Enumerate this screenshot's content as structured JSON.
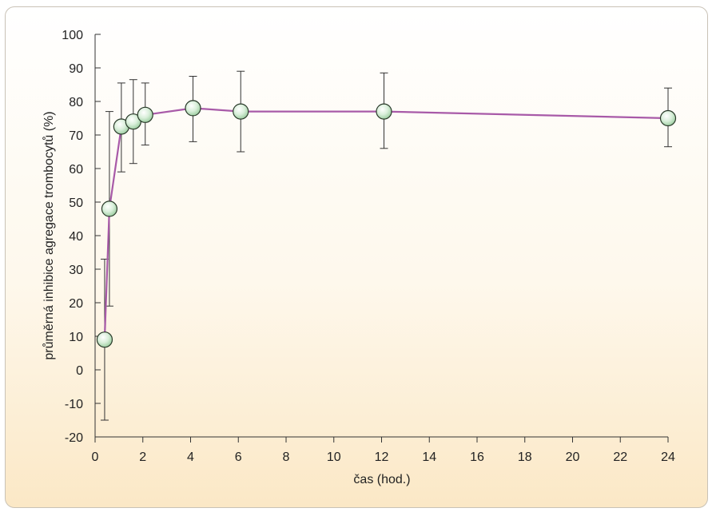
{
  "chart_data": {
    "type": "line",
    "title": "",
    "xlabel": "čas (hod.)",
    "ylabel": "průměrná inhibice agregace trombocytů (%)",
    "xlim": [
      0,
      24
    ],
    "ylim": [
      -20,
      100
    ],
    "xticks": [
      0,
      2,
      4,
      6,
      8,
      10,
      12,
      14,
      16,
      18,
      20,
      22,
      24
    ],
    "yticks": [
      -20,
      -10,
      0,
      10,
      20,
      30,
      40,
      50,
      60,
      70,
      80,
      90,
      100
    ],
    "xtick_labels": [
      "0",
      "2",
      "4",
      "6",
      "8",
      "10",
      "12",
      "14",
      "16",
      "18",
      "20",
      "22",
      "24"
    ],
    "ytick_labels": [
      "-20",
      "-10",
      "0",
      "10",
      "20",
      "30",
      "40",
      "50",
      "60",
      "70",
      "80",
      "90",
      "100"
    ],
    "grid": false,
    "series": [
      {
        "x": [
          0.4,
          0.6,
          1.1,
          1.6,
          2.1,
          4.1,
          6.1,
          12.1,
          24
        ],
        "y": [
          9,
          48,
          72.5,
          74,
          76,
          78,
          77,
          77,
          75
        ],
        "err_low": [
          -15,
          19,
          59,
          61.5,
          67,
          68,
          65,
          66,
          66.5
        ],
        "err_high": [
          33,
          77,
          85.5,
          86.5,
          85.5,
          87.5,
          89,
          88.5,
          84
        ]
      }
    ],
    "colors": {
      "line": "#a85aa8",
      "marker_fill": "#cde8cf",
      "marker_stroke": "#2a3a2a",
      "axis": "#333333"
    }
  }
}
